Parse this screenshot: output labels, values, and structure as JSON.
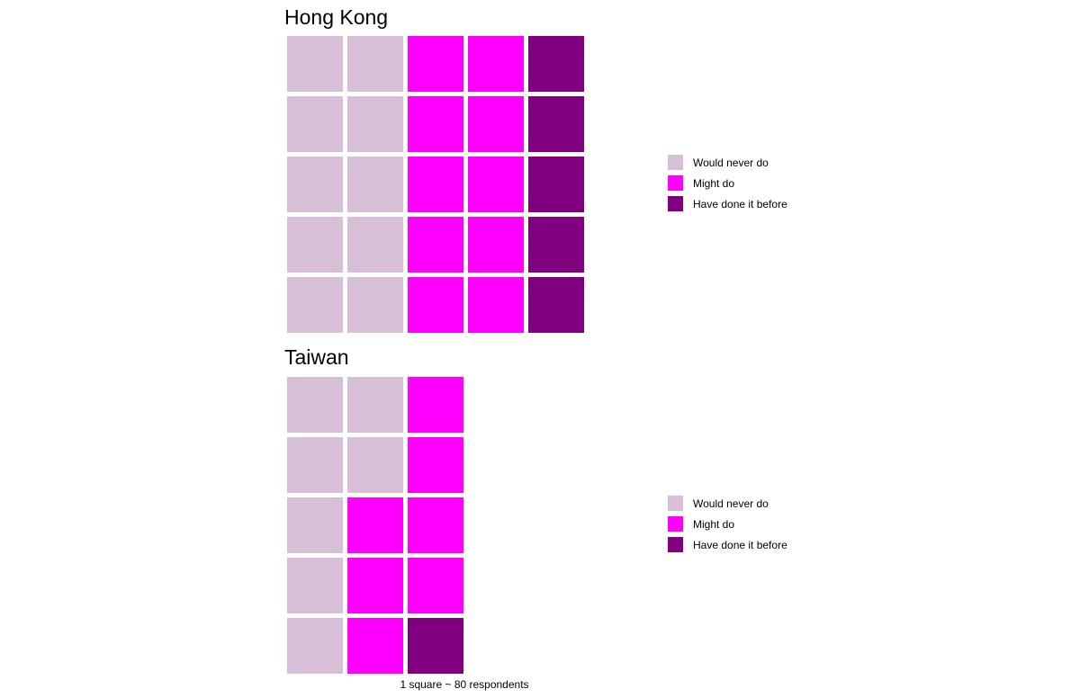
{
  "chart_data": [
    {
      "type": "waffle",
      "title": "Hong Kong",
      "categories": [
        "Would never do",
        "Might do",
        "Have done it before"
      ],
      "colors": [
        "#D8BFD8",
        "#FF00FF",
        "#800080"
      ],
      "values": [
        10,
        10,
        5
      ],
      "rows": 5,
      "legend": {
        "position": "right",
        "items": [
          "Would never do",
          "Might do",
          "Have done it before"
        ]
      }
    },
    {
      "type": "waffle",
      "title": "Taiwan",
      "categories": [
        "Would never do",
        "Might do",
        "Have done it before"
      ],
      "colors": [
        "#D8BFD8",
        "#FF00FF",
        "#800080"
      ],
      "values": [
        7,
        7,
        1
      ],
      "rows": 5,
      "legend": {
        "position": "right",
        "items": [
          "Would never do",
          "Might do",
          "Have done it before"
        ]
      }
    }
  ],
  "caption": "1 square ~ 80 respondents"
}
